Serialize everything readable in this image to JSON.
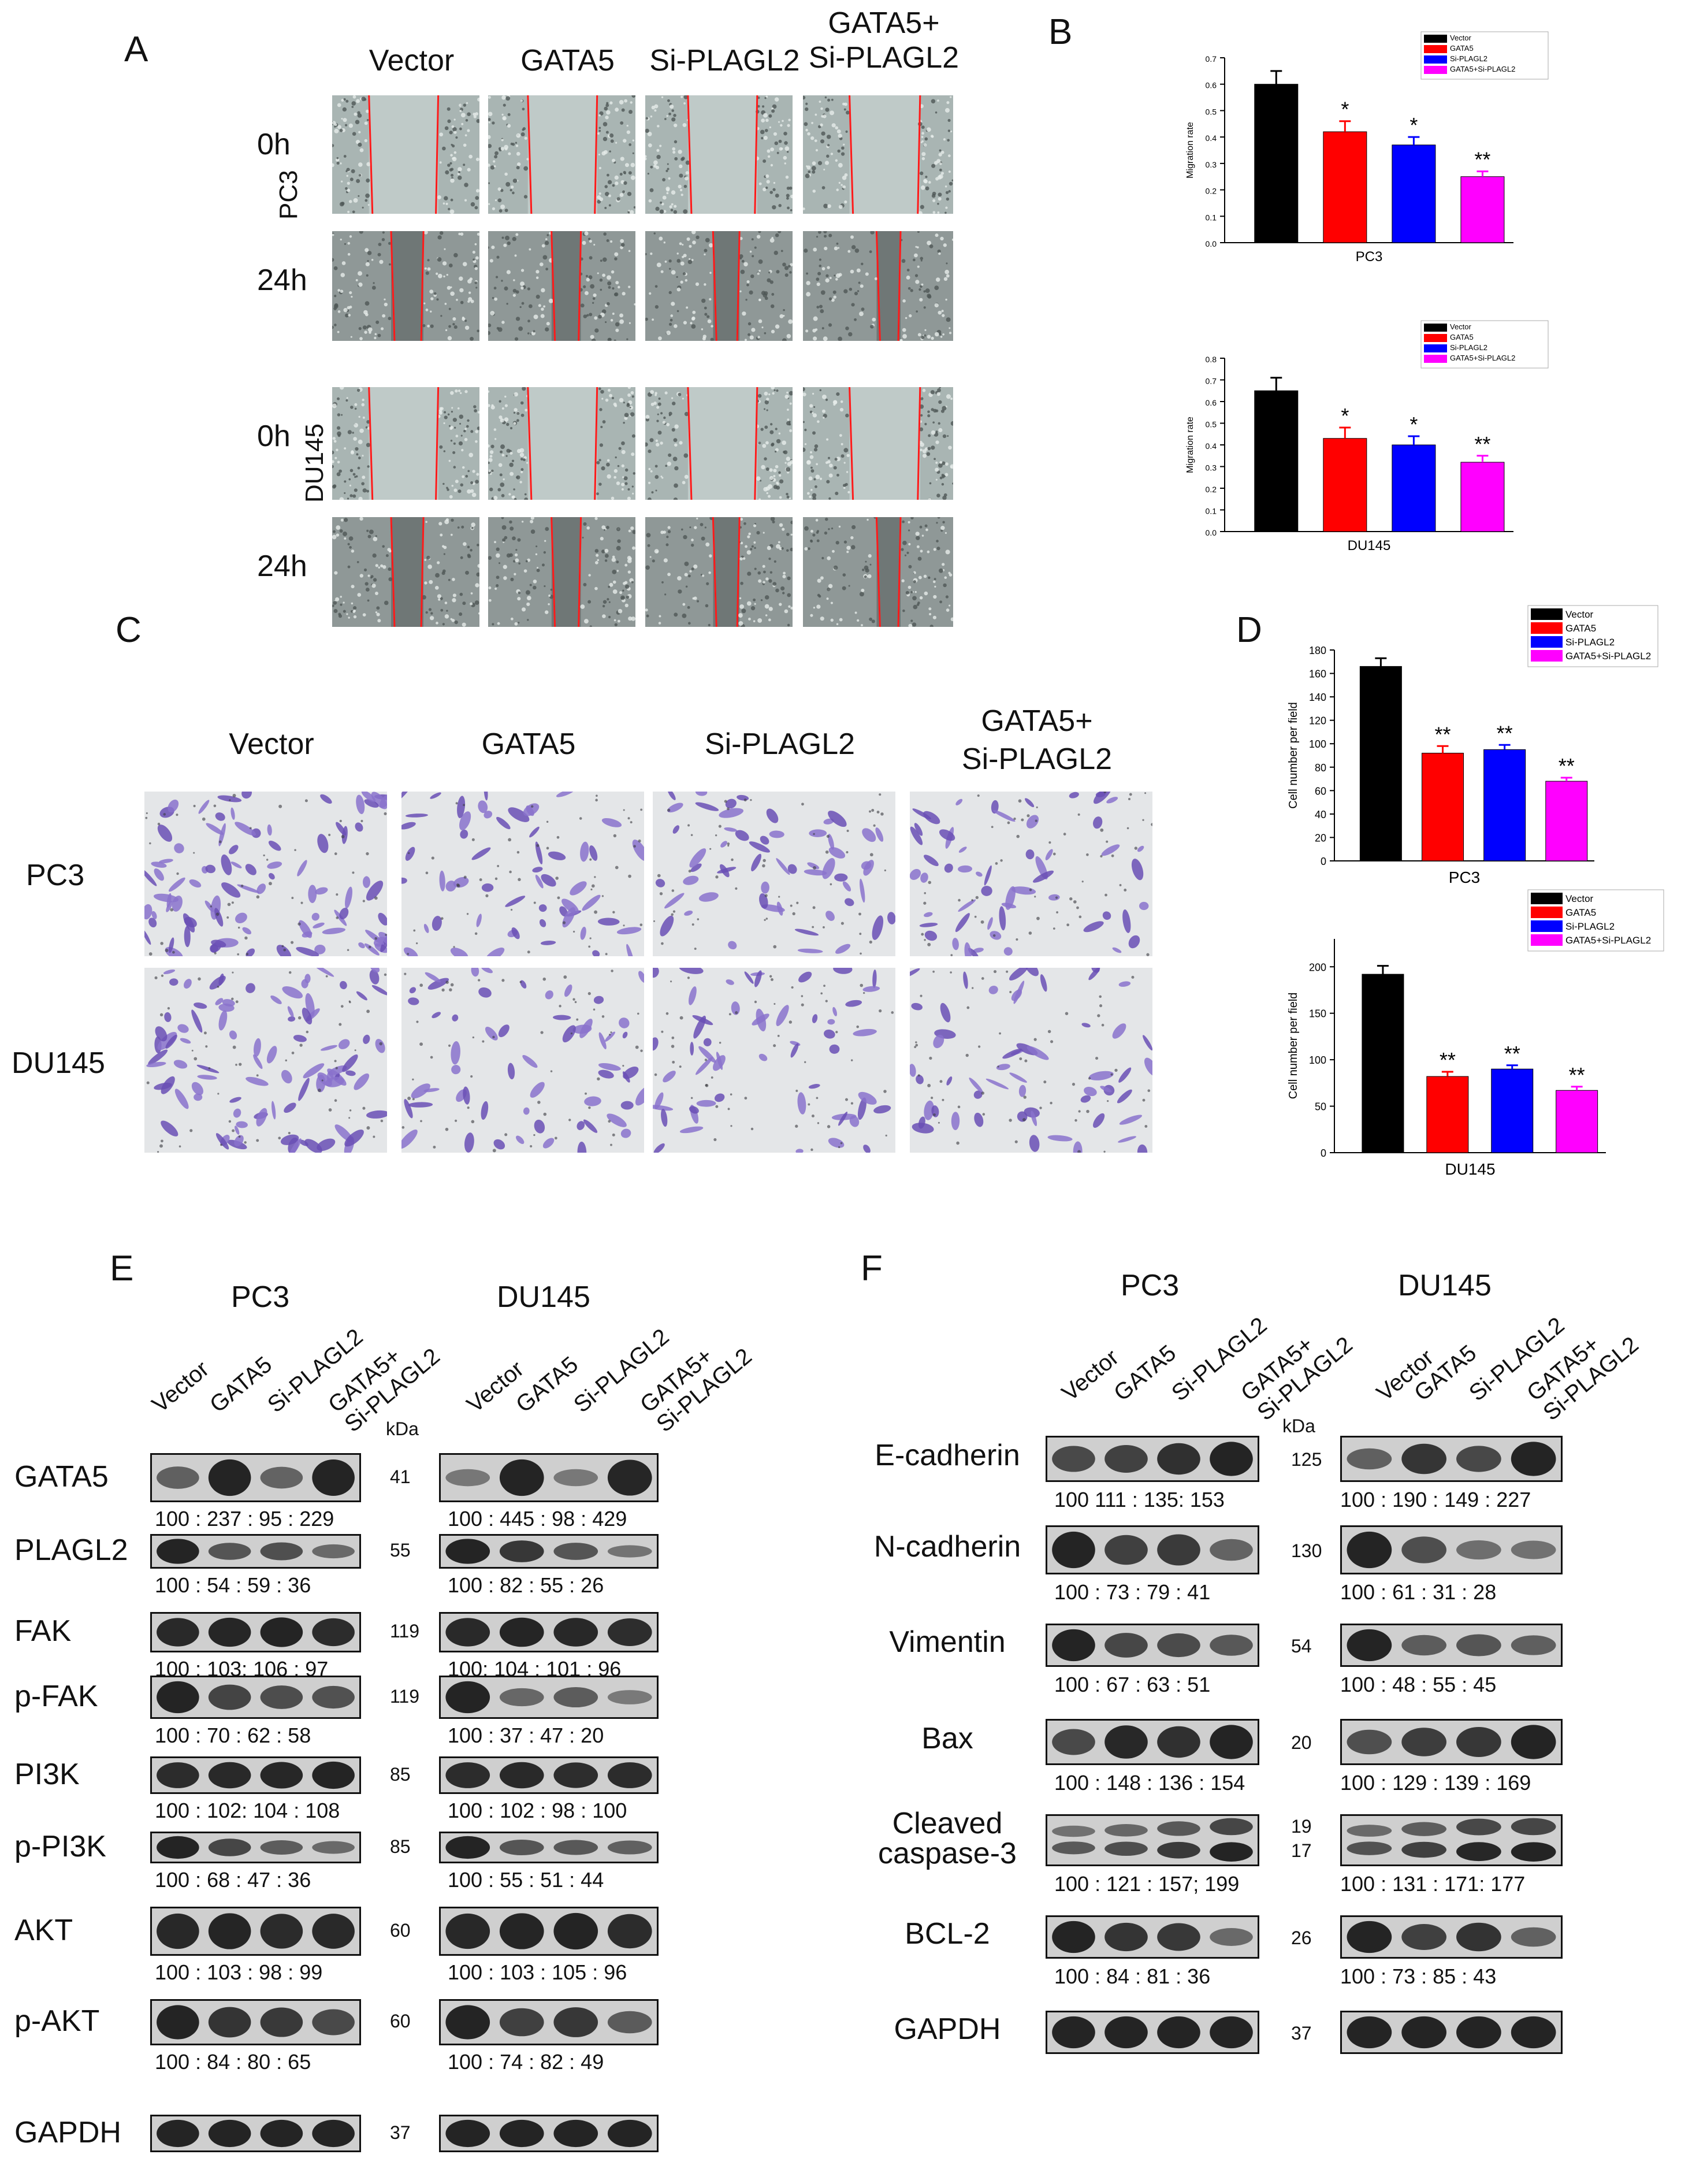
{
  "panel_letters": {
    "a": "A",
    "b": "B",
    "c": "C",
    "d": "D",
    "e": "E",
    "f": "F"
  },
  "panelA": {
    "columns": [
      "Vector",
      "GATA5",
      "Si-PLAGL2",
      "GATA5+\nSi-PLAGL2"
    ],
    "timepoints": [
      "0h",
      "24h"
    ],
    "cell_lines": [
      "PC3",
      "DU145"
    ]
  },
  "panelC": {
    "columns": [
      "Vector",
      "GATA5",
      "Si-PLAGL2",
      "GATA5+\nSi-PLAGL2"
    ],
    "cell_lines": [
      "PC3",
      "DU145"
    ]
  },
  "legend": [
    "Vector",
    "GATA5",
    "Si-PLAGL2",
    "GATA5+Si-PLAGL2"
  ],
  "colors": {
    "vector": "#000000",
    "gata5": "#ff0000",
    "siplagl2": "#0000ff",
    "combo": "#ff00ff",
    "blot_bg": "#cfcfcf",
    "band": "#1a1a1a"
  },
  "chart_data": [
    {
      "type": "bar",
      "panel": "B",
      "xlabel": "PC3",
      "ylabel": "Migration rate",
      "ylim": [
        0,
        0.7
      ],
      "yticks": [
        "0.0",
        "0.1",
        "0.2",
        "0.3",
        "0.4",
        "0.5",
        "0.6",
        "0.7"
      ],
      "categories": [
        "Vector",
        "GATA5",
        "Si-PLAGL2",
        "GATA5+Si-PLAGL2"
      ],
      "values": [
        0.6,
        0.42,
        0.37,
        0.25
      ],
      "errors": [
        0.05,
        0.04,
        0.03,
        0.02
      ],
      "significance": [
        "",
        "*",
        "*",
        "**"
      ],
      "legend_position": "top-right"
    },
    {
      "type": "bar",
      "panel": "B",
      "xlabel": "DU145",
      "ylabel": "Migration rate",
      "ylim": [
        0,
        0.8
      ],
      "yticks": [
        "0.0",
        "0.1",
        "0.2",
        "0.3",
        "0.4",
        "0.5",
        "0.6",
        "0.7",
        "0.8"
      ],
      "categories": [
        "Vector",
        "GATA5",
        "Si-PLAGL2",
        "GATA5+Si-PLAGL2"
      ],
      "values": [
        0.65,
        0.43,
        0.4,
        0.32
      ],
      "errors": [
        0.06,
        0.05,
        0.04,
        0.03
      ],
      "significance": [
        "",
        "*",
        "*",
        "**"
      ],
      "legend_position": "top-right"
    },
    {
      "type": "bar",
      "panel": "D",
      "xlabel": "PC3",
      "ylabel": "Cell number per field",
      "ylim": [
        0,
        180
      ],
      "yticks": [
        "0",
        "20",
        "40",
        "60",
        "80",
        "100",
        "120",
        "140",
        "160",
        "180"
      ],
      "categories": [
        "Vector",
        "GATA5",
        "Si-PLAGL2",
        "GATA5+Si-PLAGL2"
      ],
      "values": [
        166,
        92,
        95,
        68
      ],
      "errors": [
        7,
        6,
        4,
        3
      ],
      "significance": [
        "",
        "**",
        "**",
        "**"
      ],
      "legend_position": "top-right"
    },
    {
      "type": "bar",
      "panel": "D",
      "xlabel": "DU145",
      "ylabel": "Cell number per field",
      "ylim": [
        0,
        230
      ],
      "yticks": [
        "0",
        "50",
        "100",
        "150",
        "200"
      ],
      "categories": [
        "Vector",
        "GATA5",
        "Si-PLAGL2",
        "GATA5+Si-PLAGL2"
      ],
      "values": [
        192,
        82,
        90,
        67
      ],
      "errors": [
        9,
        5,
        4,
        4
      ],
      "significance": [
        "",
        "**",
        "**",
        "**"
      ],
      "legend_position": "top-right"
    }
  ],
  "panelE": {
    "cell_lines": [
      "PC3",
      "DU145"
    ],
    "lanes": [
      "Vector",
      "GATA5",
      "Si-PLAGL2",
      "GATA5+\nSi-PLAGL2"
    ],
    "kda_header": "kDa",
    "rows": [
      {
        "protein": "GATA5",
        "kda": "41",
        "pc3": "100 : 237 : 95 : 229",
        "du145": "100 : 445 : 98 : 429",
        "pc3_levels": [
          100,
          237,
          95,
          229
        ],
        "du145_levels": [
          100,
          445,
          98,
          429
        ]
      },
      {
        "protein": "PLAGL2",
        "kda": "55",
        "pc3": "100 :  54 :  59 :  36",
        "du145": "100 :  82 :  55 :  26",
        "pc3_levels": [
          100,
          54,
          59,
          36
        ],
        "du145_levels": [
          100,
          82,
          55,
          26
        ]
      },
      {
        "protein": "FAK",
        "kda": "119",
        "pc3": "100 : 103: 106 : 97",
        "du145": "100: 104 : 101 : 96",
        "pc3_levels": [
          100,
          103,
          106,
          97
        ],
        "du145_levels": [
          100,
          104,
          101,
          96
        ]
      },
      {
        "protein": "p-FAK",
        "kda": "119",
        "pc3": "100 :  70 :  62 :  58",
        "du145": "100 :  37 :  47 :  20",
        "pc3_levels": [
          100,
          70,
          62,
          58
        ],
        "du145_levels": [
          100,
          37,
          47,
          20
        ]
      },
      {
        "protein": "PI3K",
        "kda": "85",
        "pc3": "100 : 102:  104 : 108",
        "du145": "100 : 102 : 98  :  100",
        "pc3_levels": [
          100,
          102,
          104,
          108
        ],
        "du145_levels": [
          100,
          102,
          98,
          100
        ]
      },
      {
        "protein": "p-PI3K",
        "kda": "85",
        "pc3": "100 :  68 :  47 :  36",
        "du145": "100 :  55 :  51 :  44",
        "pc3_levels": [
          100,
          68,
          47,
          36
        ],
        "du145_levels": [
          100,
          55,
          51,
          44
        ]
      },
      {
        "protein": "AKT",
        "kda": "60",
        "pc3": "100 :  103 :  98 :  99",
        "du145": "100 :  103 :  105 :  96",
        "pc3_levels": [
          100,
          103,
          98,
          99
        ],
        "du145_levels": [
          100,
          103,
          105,
          96
        ]
      },
      {
        "protein": "p-AKT",
        "kda": "60",
        "pc3": "100 :  84 :  80 :  65",
        "du145": "100 :  74 :  82 :  49",
        "pc3_levels": [
          100,
          84,
          80,
          65
        ],
        "du145_levels": [
          100,
          74,
          82,
          49
        ]
      },
      {
        "protein": "GAPDH",
        "kda": "37",
        "pc3": "",
        "du145": "",
        "pc3_levels": [
          100,
          100,
          100,
          100
        ],
        "du145_levels": [
          100,
          100,
          100,
          100
        ]
      }
    ]
  },
  "panelF": {
    "cell_lines": [
      "PC3",
      "DU145"
    ],
    "lanes": [
      "Vector",
      "GATA5",
      "Si-PLAGL2",
      "GATA5+\nSi-PLAGL2"
    ],
    "kda_header": "kDa",
    "rows": [
      {
        "protein": "E-cadherin",
        "kda": "125",
        "pc3": "100      111  :  135:  153",
        "du145": "100 :  190 : 149 : 227",
        "pc3_levels": [
          100,
          111,
          135,
          153
        ],
        "du145_levels": [
          100,
          190,
          149,
          227
        ]
      },
      {
        "protein": "N-cadherin",
        "kda": "130",
        "pc3": "100 :  73  :  79  :  41",
        "du145": "100  :  61  :  31  :  28",
        "pc3_levels": [
          100,
          73,
          79,
          41
        ],
        "du145_levels": [
          100,
          61,
          31,
          28
        ]
      },
      {
        "protein": "Vimentin",
        "kda": "54",
        "pc3": "100  :   67  :  63  :  51",
        "du145": "100  :  48  :  55  :  45",
        "pc3_levels": [
          100,
          67,
          63,
          51
        ],
        "du145_levels": [
          100,
          48,
          55,
          45
        ]
      },
      {
        "protein": "Bax",
        "kda": "20",
        "pc3": "100  :  148  :  136 : 154",
        "du145": "100  :  129  :  139  :  169",
        "pc3_levels": [
          100,
          148,
          136,
          154
        ],
        "du145_levels": [
          100,
          129,
          139,
          169
        ]
      },
      {
        "protein": "Cleaved\ncaspase-3",
        "kda": "19\n17",
        "pc3": "100 : 121 : 157;  199",
        "du145": "100 :  131 :  171:  177",
        "pc3_levels": [
          100,
          121,
          157,
          199
        ],
        "du145_levels": [
          100,
          131,
          171,
          177
        ]
      },
      {
        "protein": "BCL-2",
        "kda": "26",
        "pc3": "100 :  84  :  81  :  36",
        "du145": "100  :  73  :  85  :  43",
        "pc3_levels": [
          100,
          84,
          81,
          36
        ],
        "du145_levels": [
          100,
          73,
          85,
          43
        ]
      },
      {
        "protein": "GAPDH",
        "kda": "37",
        "pc3": "",
        "du145": "",
        "pc3_levels": [
          100,
          100,
          100,
          100
        ],
        "du145_levels": [
          100,
          100,
          100,
          100
        ]
      }
    ]
  }
}
